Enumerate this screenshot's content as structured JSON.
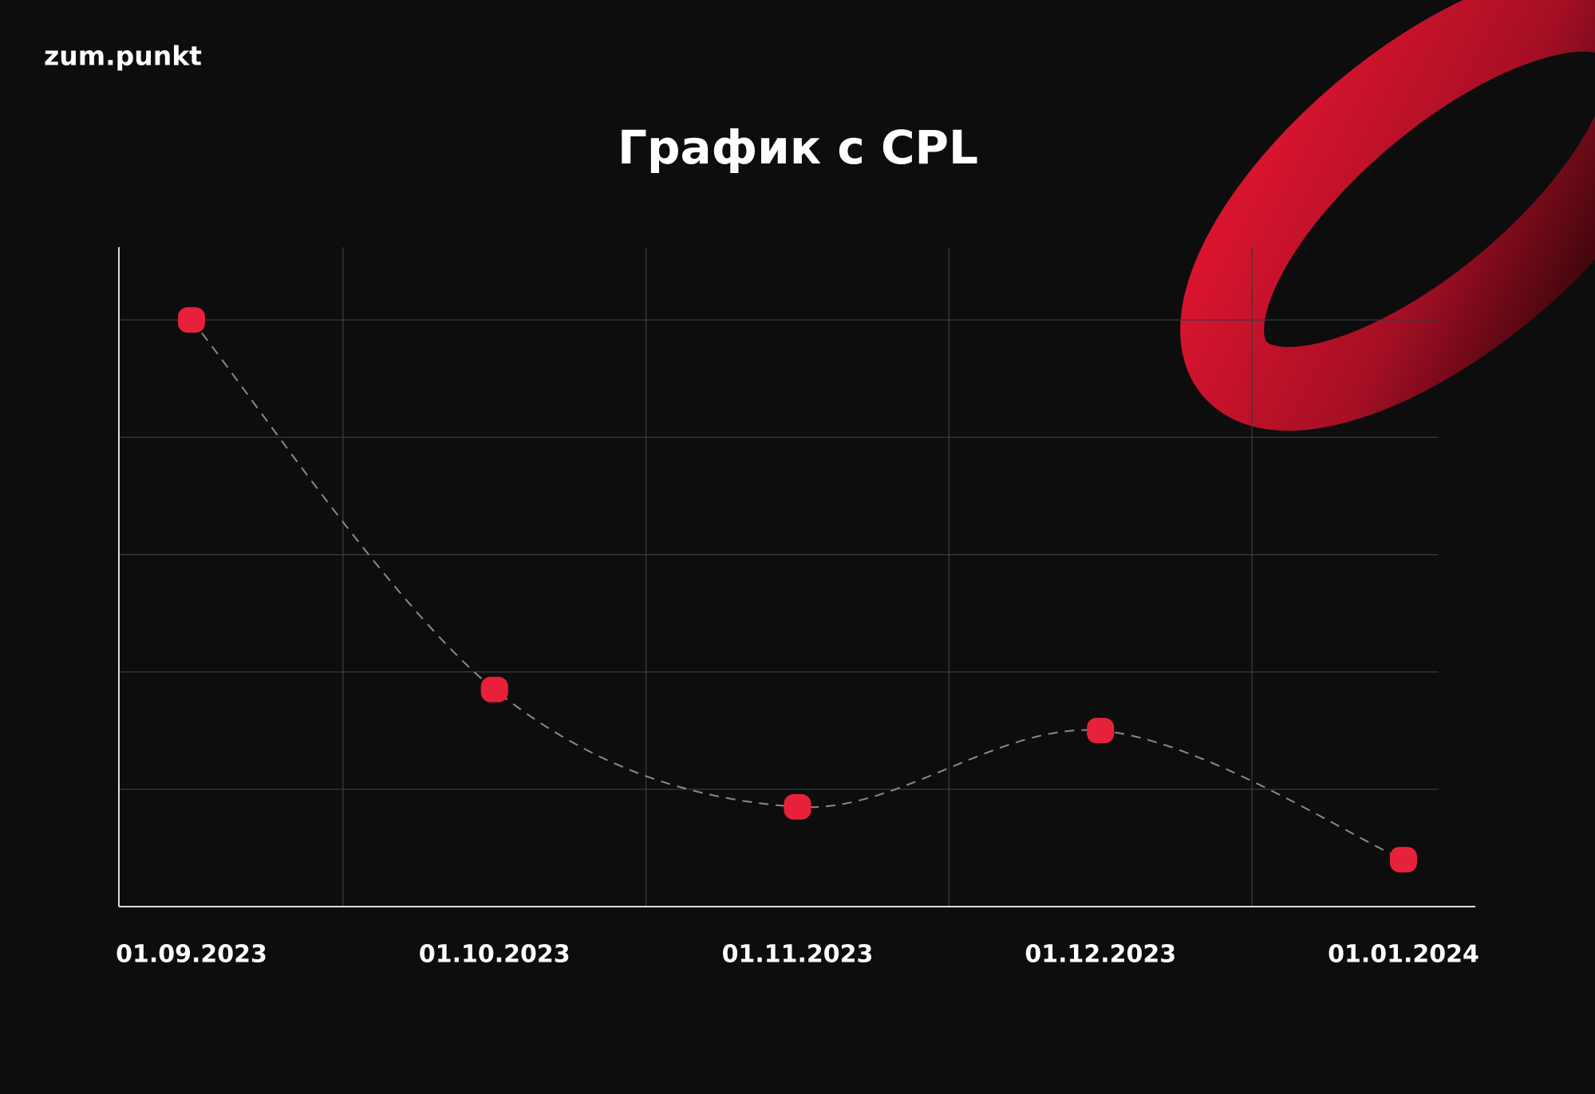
{
  "brand": "zum.punkt",
  "chart_data": {
    "type": "line",
    "title": "График с CPL",
    "categories": [
      "01.09.2023",
      "01.10.2023",
      "01.11.2023",
      "01.12.2023",
      "01.01.2024"
    ],
    "values": [
      5,
      1.85,
      0.85,
      1.5,
      0.4
    ],
    "color": "#e8213b",
    "ylim": [
      0,
      5.62
    ],
    "yticks": [
      1,
      2,
      3,
      4,
      5
    ],
    "grid": true
  }
}
